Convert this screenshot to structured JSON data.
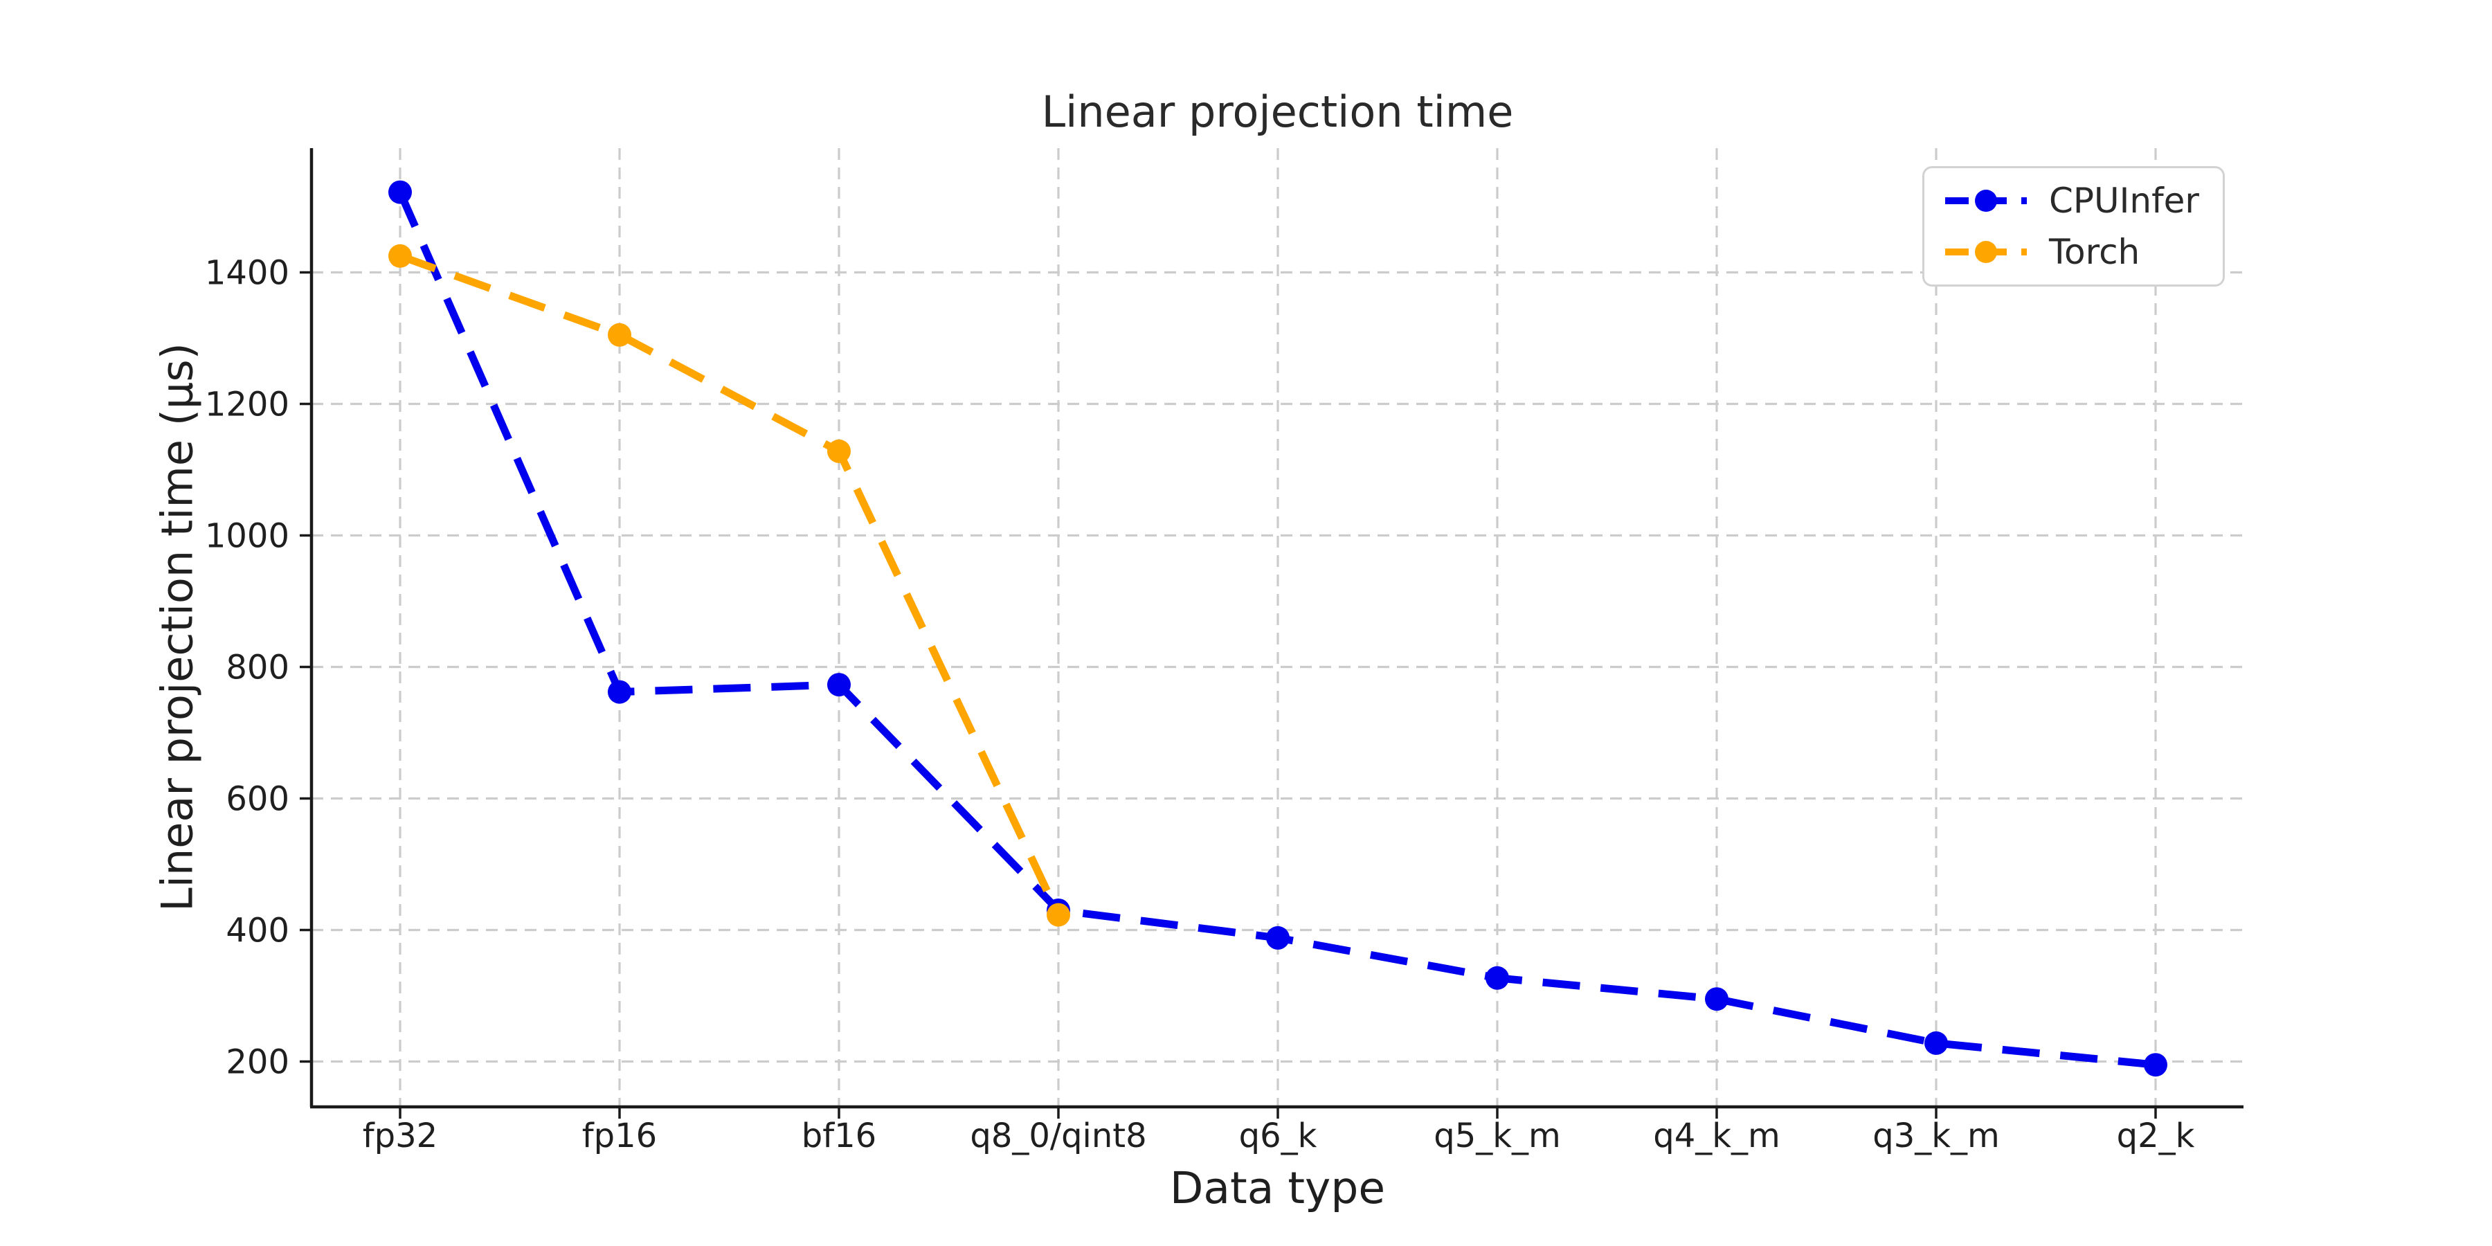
{
  "figure": {
    "title": "Linear projection time",
    "x_axis_label": "Data type",
    "y_axis_label": "Linear projection time (μs)"
  },
  "legend": {
    "items": [
      {
        "label": "CPUInfer"
      },
      {
        "label": "Torch"
      }
    ]
  },
  "chart_data": {
    "type": "line",
    "title": "Linear projection time",
    "xlabel": "Data type",
    "ylabel": "Linear projection time (μs)",
    "categories": [
      "fp32",
      "fp16",
      "bf16",
      "q8_0/qint8",
      "q6_k",
      "q5_k_m",
      "q4_k_m",
      "q3_k_m",
      "q2_k"
    ],
    "series": [
      {
        "name": "CPUInfer",
        "color": "#0000ee",
        "linestyle": "dashed",
        "marker": "circle",
        "values": [
          1522,
          762,
          773,
          430,
          388,
          327,
          295,
          228,
          195
        ]
      },
      {
        "name": "Torch",
        "color": "#ffa500",
        "linestyle": "dashed",
        "marker": "circle",
        "values": [
          1425,
          1305,
          1128,
          423,
          null,
          null,
          null,
          null,
          null
        ]
      }
    ],
    "y_ticks": [
      200,
      400,
      600,
      800,
      1000,
      1200,
      1400
    ],
    "ylim": [
      131,
      1589
    ],
    "grid": true,
    "grid_style": "dashed",
    "legend_position": "upper right",
    "background_color": "#ffffff",
    "grid_color": "#cccccc",
    "text_color": "#1f1f1f"
  }
}
